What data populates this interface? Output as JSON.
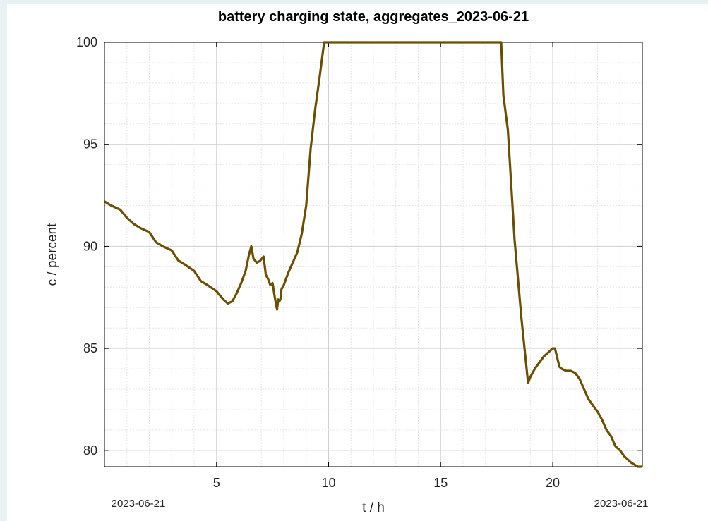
{
  "chart_data": {
    "type": "line",
    "title": "battery charging state, aggregates_2023-06-21",
    "xlabel": "t / h",
    "ylabel": "c / percent",
    "xlim": [
      0,
      24
    ],
    "ylim": [
      79.2,
      100
    ],
    "x_ticks": [
      "5",
      "10",
      "15",
      "20"
    ],
    "y_ticks": [
      "80",
      "85",
      "90",
      "95",
      "100"
    ],
    "x_date_left": "2023-06-21",
    "x_date_right": "2023-06-21",
    "grid": true,
    "series": [
      {
        "color": "#6b4e00",
        "x": [
          0,
          0.3,
          0.7,
          1.0,
          1.3,
          1.6,
          2.0,
          2.3,
          2.6,
          3.0,
          3.3,
          3.6,
          4.0,
          4.3,
          4.6,
          5.0,
          5.3,
          5.5,
          5.7,
          5.9,
          6.1,
          6.3,
          6.45,
          6.55,
          6.65,
          6.8,
          6.95,
          7.1,
          7.2,
          7.3,
          7.4,
          7.5,
          7.6,
          7.7,
          7.75,
          7.8,
          7.85,
          7.9,
          8.0,
          8.2,
          8.4,
          8.6,
          8.8,
          9.0,
          9.2,
          9.4,
          9.6,
          9.8,
          17.7,
          17.8,
          18.0,
          18.3,
          18.6,
          18.9,
          19.0,
          19.2,
          19.4,
          19.6,
          19.8,
          20.0,
          20.1,
          20.3,
          20.4,
          20.6,
          20.8,
          21.0,
          21.2,
          21.4,
          21.6,
          21.8,
          22.0,
          22.2,
          22.4,
          22.6,
          22.8,
          23.0,
          23.2,
          23.5,
          23.8,
          24.0
        ],
        "y": [
          92.2,
          92.0,
          91.8,
          91.4,
          91.1,
          90.9,
          90.7,
          90.2,
          90.0,
          89.8,
          89.3,
          89.1,
          88.8,
          88.3,
          88.1,
          87.8,
          87.4,
          87.2,
          87.3,
          87.7,
          88.2,
          88.8,
          89.6,
          90.0,
          89.4,
          89.2,
          89.3,
          89.5,
          88.6,
          88.4,
          88.1,
          88.2,
          87.5,
          86.9,
          87.4,
          87.3,
          87.4,
          87.9,
          88.1,
          88.7,
          89.2,
          89.7,
          90.6,
          92.0,
          94.8,
          96.7,
          98.3,
          100.0,
          100.0,
          97.4,
          95.7,
          90.3,
          86.5,
          83.3,
          83.6,
          84.0,
          84.3,
          84.6,
          84.8,
          85.0,
          85.0,
          84.1,
          84.0,
          83.9,
          83.9,
          83.8,
          83.5,
          83.0,
          82.5,
          82.2,
          81.9,
          81.5,
          81.0,
          80.7,
          80.2,
          80.0,
          79.7,
          79.4,
          79.2,
          79.2
        ]
      }
    ]
  }
}
